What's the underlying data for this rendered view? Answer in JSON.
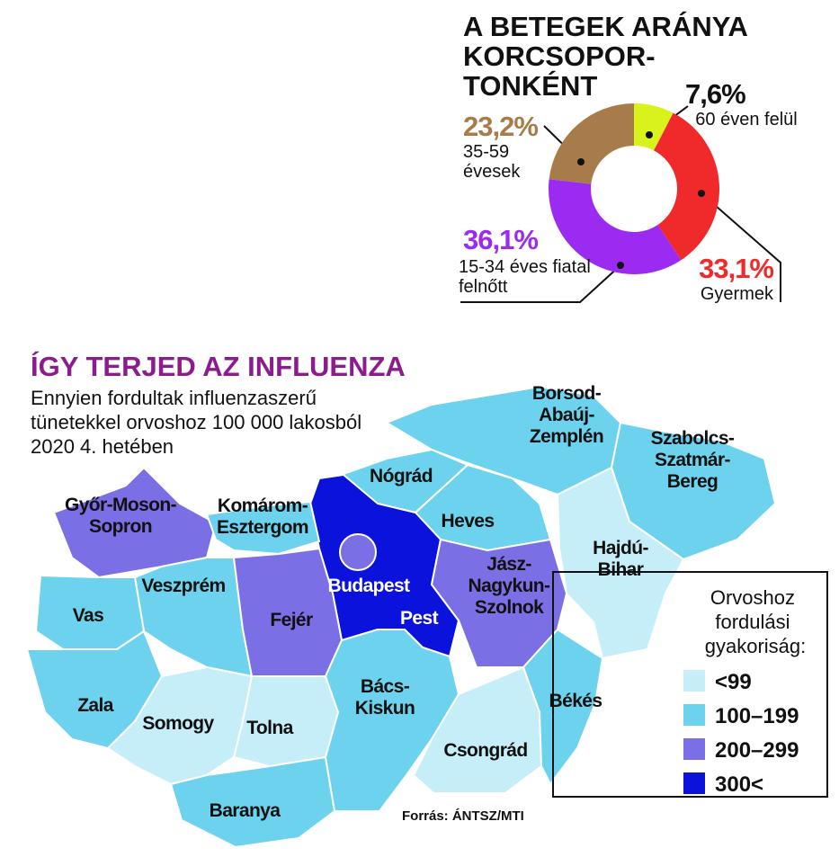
{
  "chart_data": {
    "type": "pie",
    "donut": true,
    "title": [
      "A BETEGEK ARÁNYA",
      "KORCSOPOR-",
      "TONKÉNT"
    ],
    "categories": [
      "60 éven felül",
      "Gyermek",
      "15-34 éves fiatal felnőtt",
      "35-59 évesek"
    ],
    "values": [
      7.6,
      33.1,
      36.1,
      23.2
    ],
    "value_labels": [
      "7,6%",
      "33,1%",
      "36,1%",
      "23,2%"
    ],
    "colors": [
      "#d9f21c",
      "#f02a2a",
      "#9b2bf0",
      "#a87c4a"
    ]
  },
  "map": {
    "title": "ÍGY TERJED AZ INFLUENZA",
    "subtitle": [
      "Ennyien fordultak influenzaszerű",
      "tünetekkel orvoshoz 100 000 lakosból",
      "2020 4. hetében"
    ],
    "source": "Forrás: ÁNTSZ/MTI",
    "legend": {
      "title": [
        "Orvoshoz",
        "fordulási",
        "gyakoriság:"
      ],
      "classes": [
        {
          "label": "<99",
          "color": "#c6eef8"
        },
        {
          "label": "100–199",
          "color": "#6dd2ee"
        },
        {
          "label": "200–299",
          "color": "#7b6fe6"
        },
        {
          "label": "300<",
          "color": "#0a12dc"
        }
      ]
    },
    "counties": [
      {
        "name": [
          "Borsod-",
          "Abaúj-",
          "Zemplén"
        ],
        "color": "#6dd2ee"
      },
      {
        "name": [
          "Szabolcs-",
          "Szatmár-",
          "Bereg"
        ],
        "color": "#6dd2ee"
      },
      {
        "name": [
          "Hajdú-",
          "Bihar"
        ],
        "color": "#c6eef8"
      },
      {
        "name": [
          "Nógrád"
        ],
        "color": "#6dd2ee"
      },
      {
        "name": [
          "Heves"
        ],
        "color": "#6dd2ee"
      },
      {
        "name": [
          "Pest"
        ],
        "color": "#0a12dc"
      },
      {
        "name": [
          "Jász-",
          "Nagykun-",
          "Szolnok"
        ],
        "color": "#7b6fe6"
      },
      {
        "name": [
          "Győr-Moson-",
          "Sopron"
        ],
        "color": "#7b6fe6"
      },
      {
        "name": [
          "Komárom-",
          "Esztergom"
        ],
        "color": "#6dd2ee"
      },
      {
        "name": [
          "Veszprém"
        ],
        "color": "#6dd2ee"
      },
      {
        "name": [
          "Vas"
        ],
        "color": "#6dd2ee"
      },
      {
        "name": [
          "Fejér"
        ],
        "color": "#7b6fe6"
      },
      {
        "name": [
          "Zala"
        ],
        "color": "#6dd2ee"
      },
      {
        "name": [
          "Somogy"
        ],
        "color": "#c6eef8"
      },
      {
        "name": [
          "Tolna"
        ],
        "color": "#c6eef8"
      },
      {
        "name": [
          "Baranya"
        ],
        "color": "#6dd2ee"
      },
      {
        "name": [
          "Bács-",
          "Kiskun"
        ],
        "color": "#6dd2ee"
      },
      {
        "name": [
          "Csongrád"
        ],
        "color": "#c6eef8"
      },
      {
        "name": [
          "Békés"
        ],
        "color": "#6dd2ee"
      },
      {
        "name": [
          "Budapest"
        ],
        "color": "#7b6fe6"
      }
    ]
  }
}
